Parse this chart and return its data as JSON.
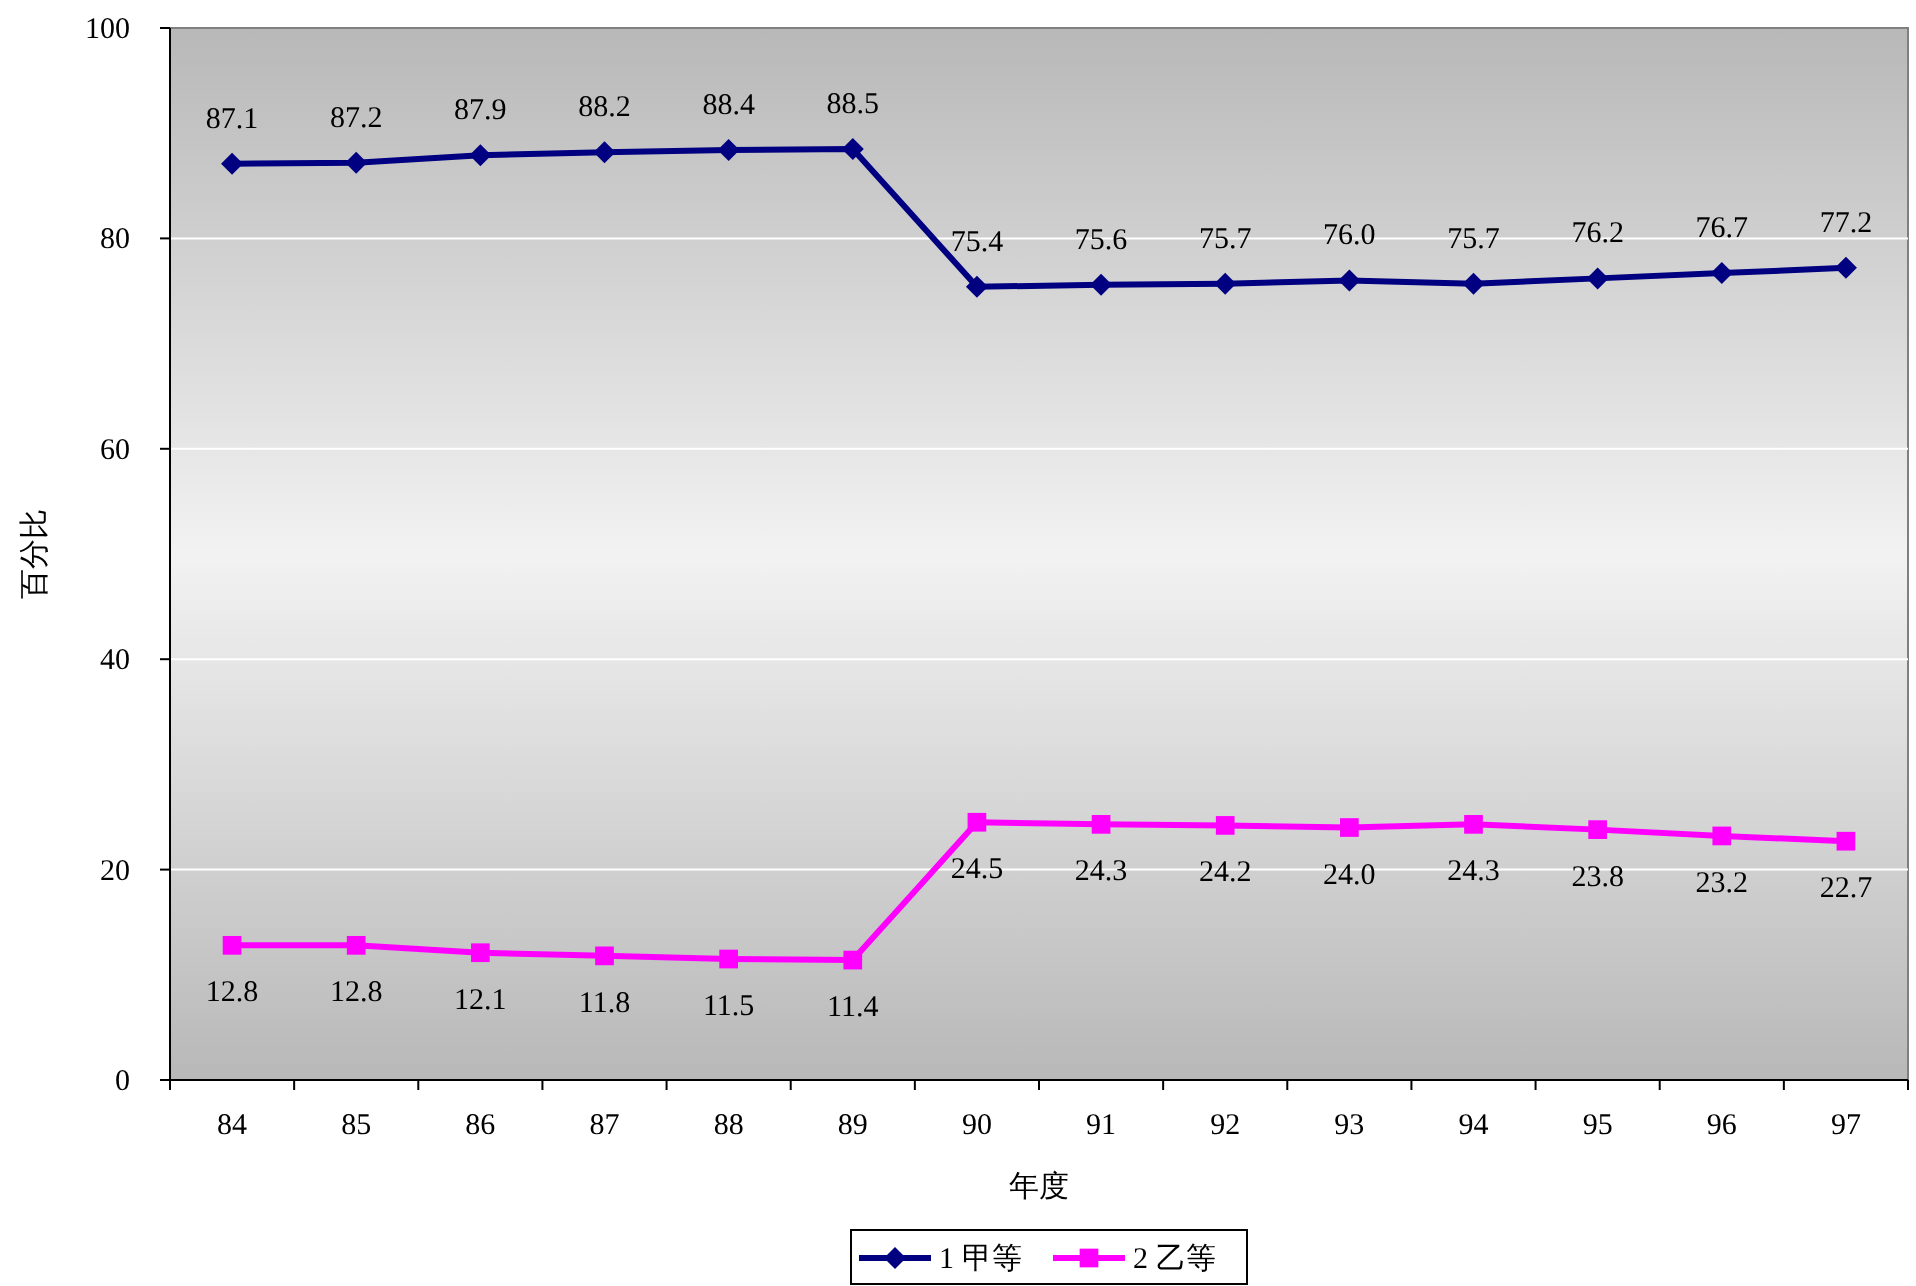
{
  "chart_data": {
    "type": "line",
    "xlabel": "年度",
    "ylabel": "百分比",
    "categories": [
      "84",
      "85",
      "86",
      "87",
      "88",
      "89",
      "90",
      "91",
      "92",
      "93",
      "94",
      "95",
      "96",
      "97"
    ],
    "series": [
      {
        "name": "1 甲等",
        "color": "#000080",
        "marker": "diamond",
        "values": [
          87.1,
          87.2,
          87.9,
          88.2,
          88.4,
          88.5,
          75.4,
          75.6,
          75.7,
          76.0,
          75.7,
          76.2,
          76.7,
          77.2
        ],
        "value_labels": [
          "87.1",
          "87.2",
          "87.9",
          "88.2",
          "88.4",
          "88.5",
          "75.4",
          "75.6",
          "75.7",
          "76.0",
          "75.7",
          "76.2",
          "76.7",
          "77.2"
        ]
      },
      {
        "name": "2 乙等",
        "color": "#ff00ff",
        "marker": "square",
        "values": [
          12.8,
          12.8,
          12.1,
          11.8,
          11.5,
          11.4,
          24.5,
          24.3,
          24.2,
          24.0,
          24.3,
          23.8,
          23.2,
          22.7
        ],
        "value_labels": [
          "12.8",
          "12.8",
          "12.1",
          "11.8",
          "11.5",
          "11.4",
          "24.5",
          "24.3",
          "24.2",
          "24.0",
          "24.3",
          "23.8",
          "23.2",
          "22.7"
        ]
      }
    ],
    "ylim": [
      0,
      100
    ],
    "yticks": [
      0,
      20,
      40,
      60,
      80,
      100
    ],
    "grid": "y",
    "legend": "bottom"
  }
}
